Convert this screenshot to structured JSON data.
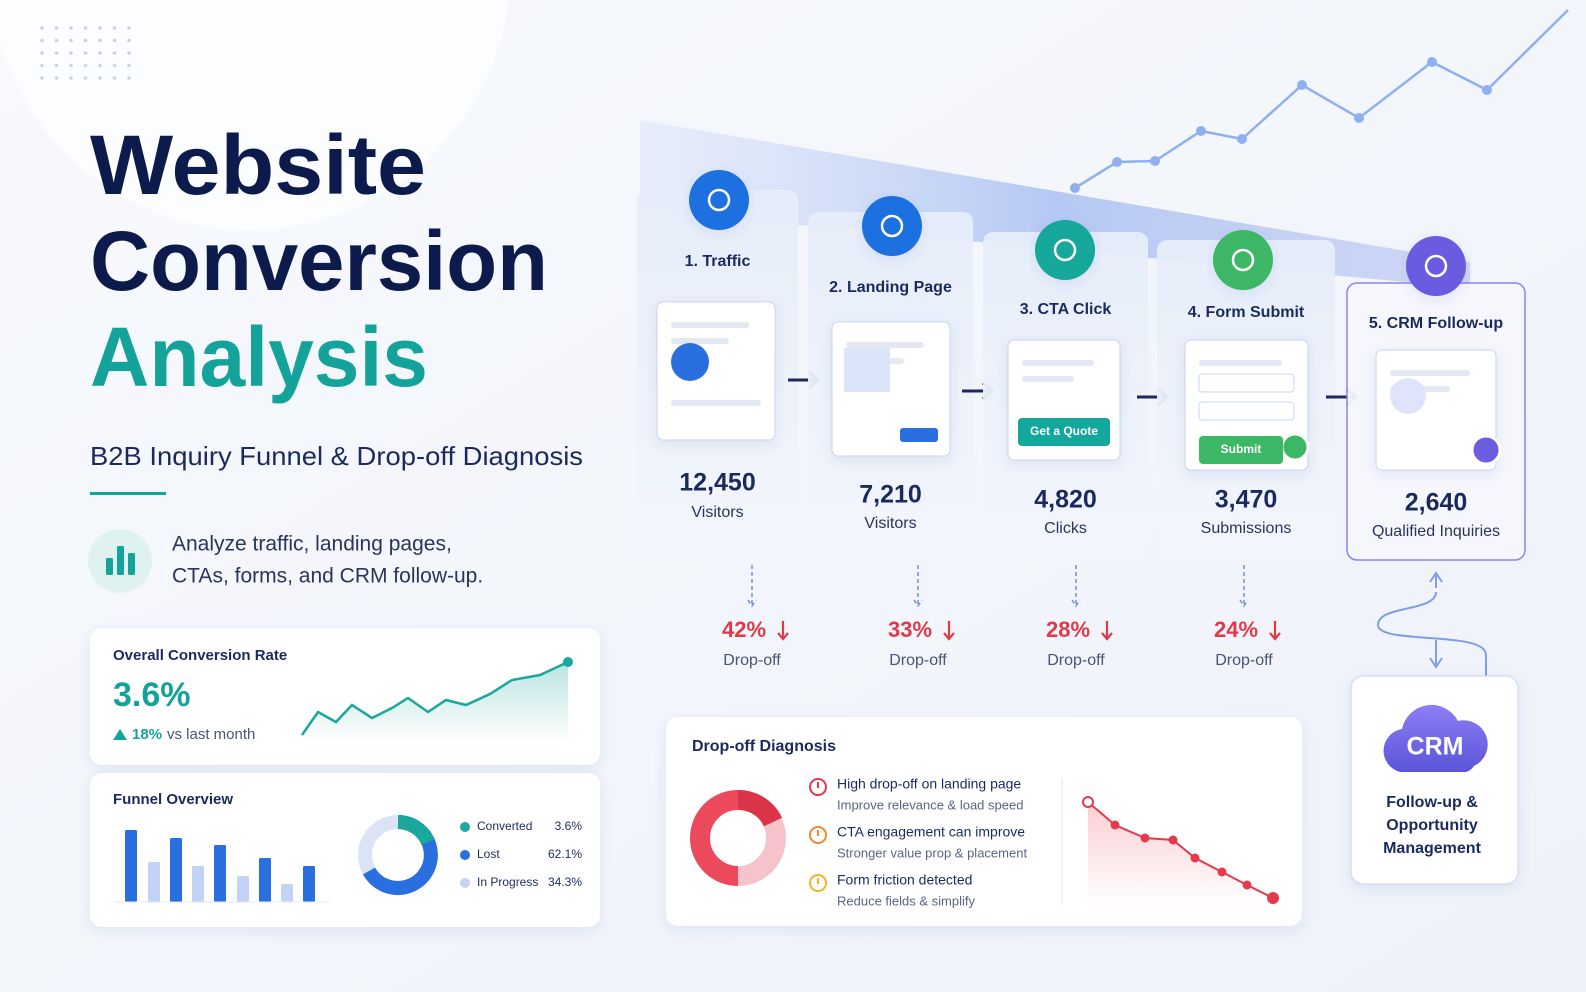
{
  "title": {
    "line1": "Website",
    "line2": "Conversion",
    "line3": "Analysis"
  },
  "subtitle": "B2B Inquiry Funnel & Drop-off Diagnosis",
  "description": [
    "Analyze traffic, landing pages,",
    "CTAs, forms, and CRM follow-up."
  ],
  "conversion_card": {
    "title": "Overall Conversion Rate",
    "value": "3.6%",
    "change": "18%",
    "change_note": "vs last month"
  },
  "funnel_overview": {
    "title": "Funnel Overview",
    "legend": [
      {
        "label": "Converted",
        "value": "3.6%"
      },
      {
        "label": "Lost",
        "value": "62.1%"
      },
      {
        "label": "In Progress",
        "value": "34.3%"
      }
    ]
  },
  "funnel": {
    "steps": [
      {
        "label": "1. Traffic",
        "count": "12,450",
        "unit": "Visitors"
      },
      {
        "label": "2. Landing Page",
        "count": "7,210",
        "unit": "Visitors"
      },
      {
        "label": "3. CTA Click",
        "count": "4,820",
        "unit": "Clicks",
        "button": "Get a Quote"
      },
      {
        "label": "4. Form Submit",
        "count": "3,470",
        "unit": "Submissions",
        "button": "Submit"
      },
      {
        "label": "5. CRM Follow-up",
        "count": "2,640",
        "unit": "Qualified Inquiries"
      }
    ],
    "drop_offs": [
      {
        "rate": "42%",
        "label": "Drop-off"
      },
      {
        "rate": "33%",
        "label": "Drop-off"
      },
      {
        "rate": "28%",
        "label": "Drop-off"
      },
      {
        "rate": "24%",
        "label": "Drop-off"
      }
    ]
  },
  "crm": {
    "badge": "CRM",
    "lines": [
      "Follow-up &",
      "Opportunity",
      "Management"
    ]
  },
  "diagnosis": {
    "title": "Drop-off Diagnosis",
    "items": [
      {
        "title": "High drop-off on landing page",
        "detail": "Improve relevance & load speed"
      },
      {
        "title": "CTA engagement can improve",
        "detail": "Stronger value prop & placement"
      },
      {
        "title": "Form friction detected",
        "detail": "Reduce fields & simplify"
      }
    ]
  }
}
